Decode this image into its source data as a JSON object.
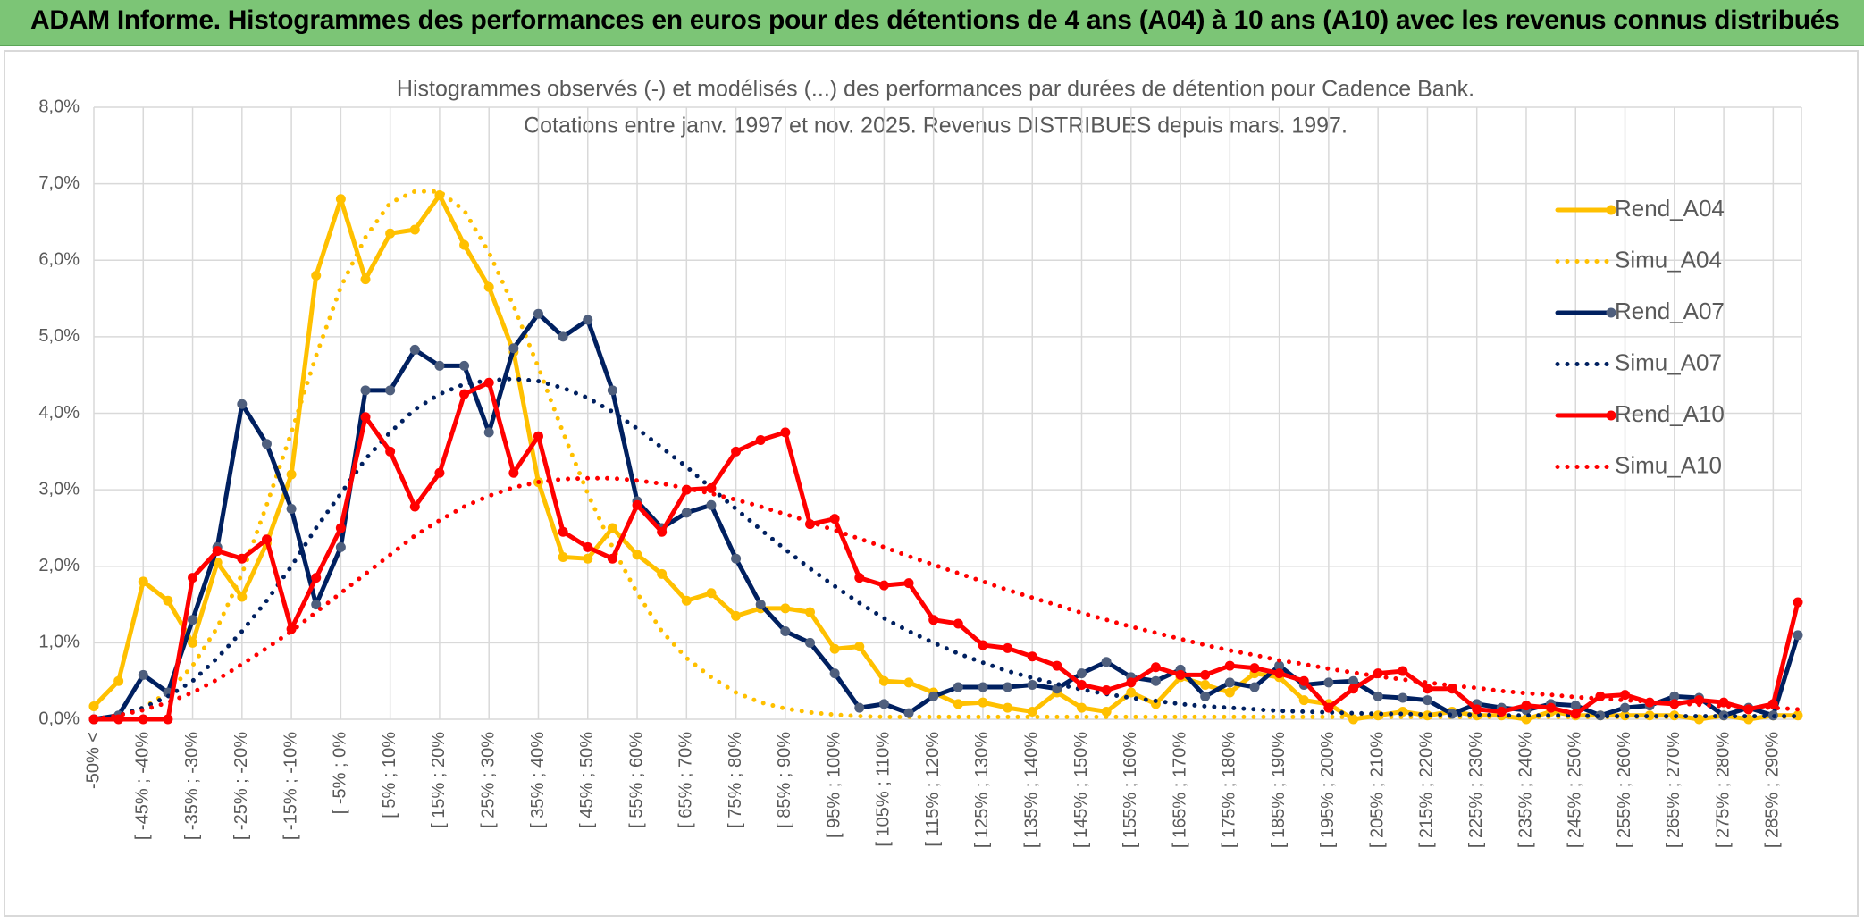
{
  "chart_data": {
    "type": "line",
    "header": "ADAM Informe. Histogrammes des performances en euros pour des détentions de 4 ans (A04) à 10 ans (A10) avec les revenus connus distribués",
    "title": "Histogrammes observés (-) et modélisés (...) des performances par durées de détention pour Cadence Bank.",
    "subtitle": "Cotations entre janv. 1997 et nov. 2025. Revenus DISTRIBUES depuis mars. 1997.",
    "categories": [
      "-50% <",
      null,
      "[ -45% ; -40%",
      null,
      "[ -35% ; -30%",
      null,
      "[ -25% ; -20%",
      null,
      "[ -15% ; -10%",
      null,
      "[ -5% ; 0%",
      null,
      "[ 5% ; 10%",
      null,
      "[ 15% ; 20%",
      null,
      "[ 25% ; 30%",
      null,
      "[ 35% ; 40%",
      null,
      "[ 45% ; 50%",
      null,
      "[ 55% ; 60%",
      null,
      "[ 65% ; 70%",
      null,
      "[ 75% ; 80%",
      null,
      "[ 85% ; 90%",
      null,
      "[ 95% ; 100%",
      null,
      "[ 105% ; 110%",
      null,
      "[ 115% ; 120%",
      null,
      "[ 125% ; 130%",
      null,
      "[ 135% ; 140%",
      null,
      "[ 145% ; 150%",
      null,
      "[ 155% ; 160%",
      null,
      "[ 165% ; 170%",
      null,
      "[ 175% ; 180%",
      null,
      "[ 185% ; 190%",
      null,
      "[ 195% ; 200%",
      null,
      "[ 205% ; 210%",
      null,
      "[ 215% ; 220%",
      null,
      "[ 225% ; 230%",
      null,
      "[ 235% ; 240%",
      null,
      "[ 245% ; 250%",
      null,
      "[ 255% ; 260%",
      null,
      "[ 265% ; 270%",
      null,
      "[ 275% ; 280%",
      null,
      "[ 285% ; 290%",
      null
    ],
    "ylim": [
      0,
      8
    ],
    "yticks": [
      {
        "value": 0,
        "label": "0,0%"
      },
      {
        "value": 1,
        "label": "1,0%"
      },
      {
        "value": 2,
        "label": "2,0%"
      },
      {
        "value": 3,
        "label": "3,0%"
      },
      {
        "value": 4,
        "label": "4,0%"
      },
      {
        "value": 5,
        "label": "5,0%"
      },
      {
        "value": 6,
        "label": "6,0%"
      },
      {
        "value": 7,
        "label": "7,0%"
      },
      {
        "value": 8,
        "label": "8,0%"
      }
    ],
    "grid": true,
    "legend": "right",
    "series": [
      {
        "name": "Rend_A04",
        "color": "#ffc000",
        "style": "solid",
        "markers": true,
        "values": [
          0.17,
          0.5,
          1.8,
          1.55,
          1.0,
          2.05,
          1.6,
          2.3,
          3.2,
          5.8,
          6.8,
          5.75,
          6.35,
          6.4,
          6.85,
          6.2,
          5.65,
          4.8,
          3.1,
          2.12,
          2.1,
          2.5,
          2.15,
          1.9,
          1.55,
          1.65,
          1.35,
          1.45,
          1.45,
          1.4,
          0.92,
          0.95,
          0.5,
          0.48,
          0.35,
          0.2,
          0.22,
          0.15,
          0.1,
          0.35,
          0.15,
          0.1,
          0.35,
          0.2,
          0.55,
          0.45,
          0.35,
          0.6,
          0.55,
          0.25,
          0.2,
          0,
          0.05,
          0.1,
          0.05,
          0.1,
          0.05,
          0.05,
          0,
          0.1,
          0.05,
          0.05,
          0.05,
          0.05,
          0.05,
          0,
          0.05,
          0,
          0.05,
          0.05
        ]
      },
      {
        "name": "Simu_A04",
        "color": "#ffc000",
        "style": "dotted",
        "markers": false,
        "values": [
          0,
          0.05,
          0.15,
          0.35,
          0.7,
          1.2,
          1.9,
          2.8,
          3.75,
          4.75,
          5.65,
          6.3,
          6.75,
          6.9,
          6.9,
          6.65,
          6.1,
          5.4,
          4.6,
          3.75,
          2.95,
          2.25,
          1.65,
          1.15,
          0.8,
          0.55,
          0.35,
          0.22,
          0.14,
          0.09,
          0.06,
          0.04,
          0.03,
          0.03,
          0.03,
          0.03,
          0.03,
          0.03,
          0.03,
          0.03,
          0.03,
          0.03,
          0.03,
          0.03,
          0.03,
          0.03,
          0.03,
          0.03,
          0.03,
          0.03,
          0.03,
          0.03,
          0.03,
          0.03,
          0.03,
          0.03,
          0.03,
          0.03,
          0.03,
          0.03,
          0.03,
          0.03,
          0.03,
          0.03,
          0.03,
          0.03,
          0.03,
          0.03,
          0.03,
          0.03
        ]
      },
      {
        "name": "Rend_A07",
        "color": "#002060",
        "marker_color": "#4f5f7d",
        "style": "solid",
        "markers": true,
        "values": [
          0,
          0.05,
          0.58,
          0.35,
          1.3,
          2.25,
          4.12,
          3.6,
          2.75,
          1.5,
          2.25,
          4.3,
          4.3,
          4.83,
          4.62,
          4.62,
          3.75,
          4.85,
          5.3,
          5.0,
          5.22,
          4.3,
          2.85,
          2.5,
          2.7,
          2.8,
          2.1,
          1.5,
          1.15,
          1.0,
          0.6,
          0.15,
          0.2,
          0.08,
          0.3,
          0.42,
          0.42,
          0.42,
          0.45,
          0.4,
          0.6,
          0.75,
          0.55,
          0.5,
          0.65,
          0.3,
          0.48,
          0.42,
          0.7,
          0.45,
          0.48,
          0.5,
          0.3,
          0.28,
          0.25,
          0.07,
          0.2,
          0.15,
          0.12,
          0.2,
          0.18,
          0.05,
          0.15,
          0.18,
          0.3,
          0.28,
          0.05,
          0.15,
          0.05,
          1.1
        ]
      },
      {
        "name": "Simu_A07",
        "color": "#002060",
        "style": "dotted",
        "markers": false,
        "values": [
          0,
          0.05,
          0.15,
          0.3,
          0.5,
          0.8,
          1.15,
          1.55,
          2.0,
          2.5,
          2.95,
          3.4,
          3.75,
          4.05,
          4.25,
          4.38,
          4.43,
          4.45,
          4.42,
          4.33,
          4.2,
          4.02,
          3.8,
          3.55,
          3.3,
          3.02,
          2.75,
          2.48,
          2.22,
          1.97,
          1.74,
          1.52,
          1.32,
          1.15,
          1.0,
          0.86,
          0.74,
          0.63,
          0.54,
          0.46,
          0.39,
          0.33,
          0.28,
          0.24,
          0.2,
          0.17,
          0.15,
          0.13,
          0.11,
          0.1,
          0.09,
          0.08,
          0.07,
          0.07,
          0.06,
          0.06,
          0.06,
          0.05,
          0.05,
          0.05,
          0.05,
          0.04,
          0.04,
          0.04,
          0.04,
          0.04,
          0.04,
          0.04,
          0.04,
          0.04
        ]
      },
      {
        "name": "Rend_A10",
        "color": "#ff0000",
        "style": "solid",
        "markers": true,
        "values": [
          0,
          0,
          0,
          0,
          1.85,
          2.2,
          2.1,
          2.35,
          1.18,
          1.85,
          2.5,
          3.95,
          3.5,
          2.78,
          3.22,
          4.25,
          4.4,
          3.22,
          3.7,
          2.45,
          2.25,
          2.1,
          2.8,
          2.45,
          3.0,
          3.02,
          3.5,
          3.65,
          3.75,
          2.55,
          2.62,
          1.85,
          1.75,
          1.78,
          1.3,
          1.25,
          0.97,
          0.93,
          0.82,
          0.7,
          0.45,
          0.38,
          0.48,
          0.68,
          0.58,
          0.58,
          0.7,
          0.67,
          0.6,
          0.5,
          0.15,
          0.4,
          0.6,
          0.63,
          0.4,
          0.4,
          0.13,
          0.1,
          0.18,
          0.15,
          0.07,
          0.3,
          0.32,
          0.22,
          0.2,
          0.25,
          0.22,
          0.13,
          0.2,
          1.53
        ]
      },
      {
        "name": "Simu_A10",
        "color": "#ff0000",
        "style": "dotted",
        "markers": false,
        "values": [
          0,
          0.05,
          0.12,
          0.22,
          0.35,
          0.52,
          0.72,
          0.93,
          1.15,
          1.4,
          1.65,
          1.9,
          2.15,
          2.4,
          2.6,
          2.78,
          2.92,
          3.03,
          3.1,
          3.14,
          3.15,
          3.15,
          3.12,
          3.08,
          3.02,
          2.95,
          2.87,
          2.78,
          2.68,
          2.58,
          2.47,
          2.36,
          2.25,
          2.13,
          2.02,
          1.91,
          1.8,
          1.69,
          1.59,
          1.49,
          1.39,
          1.3,
          1.21,
          1.13,
          1.05,
          0.97,
          0.9,
          0.84,
          0.77,
          0.72,
          0.66,
          0.61,
          0.56,
          0.52,
          0.48,
          0.44,
          0.41,
          0.37,
          0.34,
          0.32,
          0.29,
          0.27,
          0.25,
          0.23,
          0.21,
          0.19,
          0.17,
          0.16,
          0.15,
          0.13
        ]
      }
    ]
  }
}
